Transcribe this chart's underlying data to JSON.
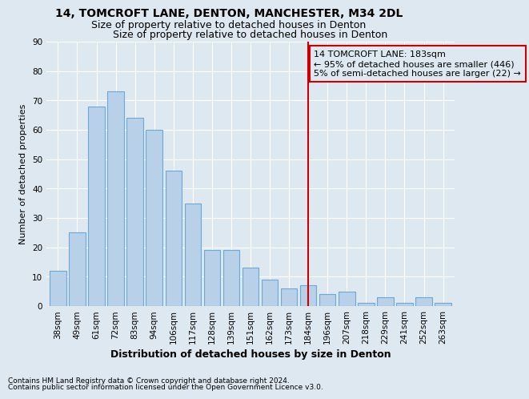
{
  "title1": "14, TOMCROFT LANE, DENTON, MANCHESTER, M34 2DL",
  "title2": "Size of property relative to detached houses in Denton",
  "xlabel": "Distribution of detached houses by size in Denton",
  "ylabel": "Number of detached properties",
  "footnote1": "Contains HM Land Registry data © Crown copyright and database right 2024.",
  "footnote2": "Contains public sector information licensed under the Open Government Licence v3.0.",
  "categories": [
    "38sqm",
    "49sqm",
    "61sqm",
    "72sqm",
    "83sqm",
    "94sqm",
    "106sqm",
    "117sqm",
    "128sqm",
    "139sqm",
    "151sqm",
    "162sqm",
    "173sqm",
    "184sqm",
    "196sqm",
    "207sqm",
    "218sqm",
    "229sqm",
    "241sqm",
    "252sqm",
    "263sqm"
  ],
  "bar_values": [
    12,
    25,
    68,
    73,
    64,
    60,
    46,
    35,
    19,
    19,
    13,
    9,
    6,
    7,
    4,
    5,
    1,
    3,
    1,
    3,
    1
  ],
  "bar_color": "#b8d0e8",
  "bar_edge_color": "#6aaad4",
  "vline_index": 13,
  "vline_color": "#cc0000",
  "annotation_text": "14 TOMCROFT LANE: 183sqm\n← 95% of detached houses are smaller (446)\n5% of semi-detached houses are larger (22) →",
  "bg_color": "#dde8f0",
  "ylim": [
    0,
    90
  ],
  "yticks": [
    0,
    10,
    20,
    30,
    40,
    50,
    60,
    70,
    80,
    90
  ],
  "grid_color": "#ffffff",
  "title_fontsize": 10,
  "subtitle_fontsize": 9,
  "xlabel_fontsize": 9,
  "ylabel_fontsize": 8,
  "tick_fontsize": 7.5,
  "annot_fontsize": 8,
  "footnote_fontsize": 6.5
}
